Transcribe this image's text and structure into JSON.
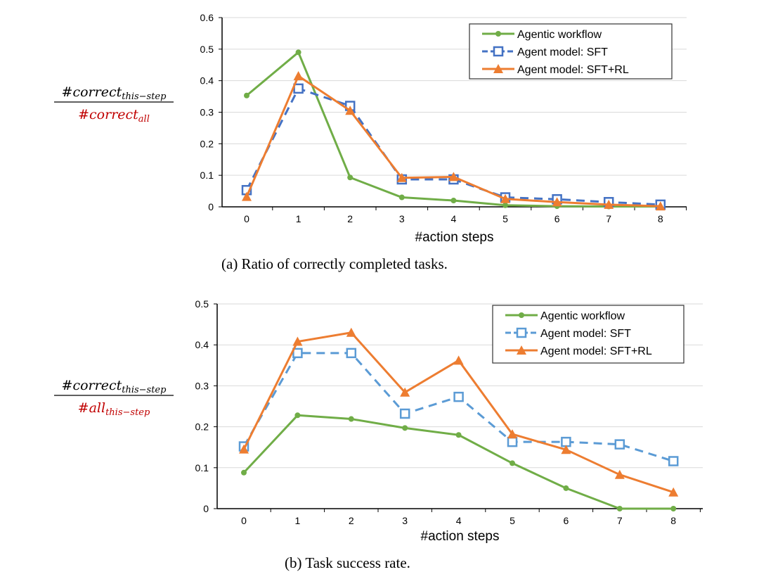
{
  "chart_data": [
    {
      "type": "line",
      "x": [
        0,
        1,
        2,
        3,
        4,
        5,
        6,
        7,
        8
      ],
      "xlabel": "#action steps",
      "ylabel": {
        "numerator": "#correct",
        "numerator_sub": "this−step",
        "denominator": "#correct",
        "denominator_sub": "all"
      },
      "ylim": [
        0,
        0.6
      ],
      "yticks": [
        "0",
        "0.1",
        "0.2",
        "0.3",
        "0.4",
        "0.5",
        "0.6"
      ],
      "grid": true,
      "legend": "top-right",
      "caption": "(a)  Ratio of correctly completed tasks.",
      "series": [
        {
          "name": "Agentic workflow",
          "color": "#70ad47",
          "marker": "circle",
          "dash": false,
          "values": [
            0.353,
            0.49,
            0.093,
            0.03,
            0.02,
            0.005,
            0.002,
            0.001,
            0.001
          ]
        },
        {
          "name": "Agent model: SFT",
          "color": "#4472c4",
          "marker": "square",
          "dash": true,
          "values": [
            0.053,
            0.375,
            0.32,
            0.087,
            0.087,
            0.03,
            0.024,
            0.015,
            0.007
          ]
        },
        {
          "name": "Agent model: SFT+RL",
          "color": "#ed7d31",
          "marker": "triangle",
          "dash": false,
          "values": [
            0.032,
            0.415,
            0.305,
            0.092,
            0.095,
            0.025,
            0.015,
            0.007,
            0.002
          ]
        }
      ]
    },
    {
      "type": "line",
      "x": [
        0,
        1,
        2,
        3,
        4,
        5,
        6,
        7,
        8
      ],
      "xlabel": "#action steps",
      "ylabel": {
        "numerator": "#correct",
        "numerator_sub": "this−step",
        "denominator": "#all",
        "denominator_sub": "this−step"
      },
      "ylim": [
        0,
        0.5
      ],
      "yticks": [
        "0",
        "0.1",
        "0.2",
        "0.3",
        "0.4",
        "0.5"
      ],
      "grid": true,
      "legend": "top-right",
      "caption": "(b)  Task success rate.",
      "series": [
        {
          "name": "Agentic workflow",
          "color": "#70ad47",
          "marker": "circle",
          "dash": false,
          "values": [
            0.088,
            0.228,
            0.219,
            0.197,
            0.18,
            0.111,
            0.05,
            0,
            0
          ]
        },
        {
          "name": "Agent model: SFT",
          "color": "#5b9bd5",
          "marker": "square",
          "dash": true,
          "values": [
            0.152,
            0.38,
            0.38,
            0.232,
            0.273,
            0.163,
            0.163,
            0.157,
            0.116
          ]
        },
        {
          "name": "Agent model: SFT+RL",
          "color": "#ed7d31",
          "marker": "triangle",
          "dash": false,
          "values": [
            0.145,
            0.408,
            0.43,
            0.284,
            0.362,
            0.182,
            0.144,
            0.083,
            0.04
          ]
        }
      ]
    }
  ]
}
